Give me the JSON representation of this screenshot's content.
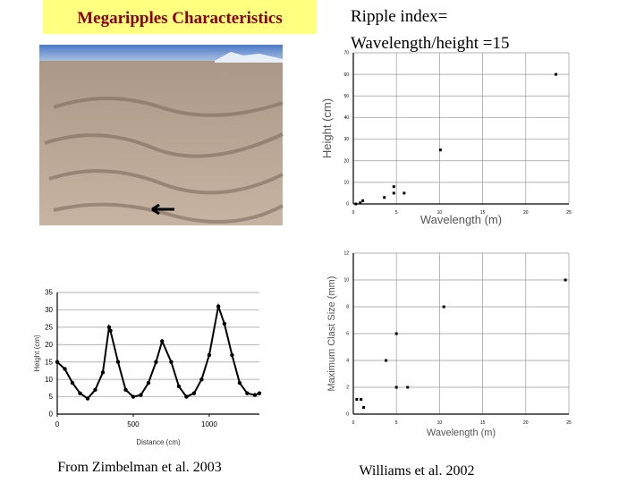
{
  "title": "Megaripples Characteristics",
  "ripple_index": [
    "Ripple index=",
    "Wavelength/height =15"
  ],
  "captions": {
    "left": "From Zimbelman et al. 2003",
    "right": "Williams et al. 2002"
  },
  "chart_data": [
    {
      "type": "line",
      "xlabel": "Distance (cm)",
      "ylabel": "Height (cm)",
      "color": "#000000",
      "grid": true,
      "x": [
        0,
        50,
        100,
        150,
        200,
        250,
        300,
        341,
        350,
        400,
        450,
        500,
        550,
        600,
        650,
        690,
        750,
        800,
        850,
        900,
        950,
        1000,
        1060,
        1100,
        1150,
        1200,
        1250,
        1300,
        1330
      ],
      "values": [
        15,
        13,
        9,
        6,
        4.5,
        7,
        12,
        25,
        24,
        15,
        7,
        5,
        5.5,
        9,
        15,
        21,
        15,
        8,
        5,
        6,
        10,
        17,
        31,
        26,
        17,
        9,
        6,
        5.5,
        6
      ],
      "xlim": [
        0,
        1330
      ],
      "ylim": [
        0,
        35
      ],
      "xticks": [
        0,
        500,
        1000
      ],
      "yticks": [
        0,
        5,
        10,
        15,
        20,
        25,
        30,
        35
      ]
    },
    {
      "type": "scatter",
      "xlabel": "Wavelength (m)",
      "ylabel": "Height (cm)",
      "color": "#000000",
      "grid": true,
      "x": [
        0.3,
        0.8,
        1.1,
        3.6,
        4.7,
        4.7,
        5.9,
        10.1,
        23.5
      ],
      "values": [
        0,
        0.5,
        1.5,
        3,
        8,
        5,
        5,
        25,
        60
      ],
      "xlim": [
        0,
        25
      ],
      "ylim": [
        0,
        70
      ],
      "xticks": [
        0,
        5,
        10,
        15,
        20,
        25
      ],
      "yticks": [
        0,
        10,
        20,
        30,
        40,
        50,
        60,
        70
      ]
    },
    {
      "type": "scatter",
      "xlabel": "Wavelength (m)",
      "ylabel": "Maximum Clast Size (mm)",
      "color": "#000000",
      "grid": true,
      "x": [
        0.4,
        0.9,
        1.2,
        3.8,
        5,
        5,
        6.3,
        10.5,
        24.6
      ],
      "values": [
        1.1,
        1.1,
        0.5,
        4,
        6,
        2,
        2,
        8,
        10
      ],
      "xlim": [
        0,
        25
      ],
      "ylim": [
        0,
        12
      ],
      "xticks": [
        0,
        5,
        10,
        15,
        20,
        25
      ],
      "yticks": [
        0,
        2,
        4,
        6,
        8,
        10,
        12
      ]
    }
  ]
}
